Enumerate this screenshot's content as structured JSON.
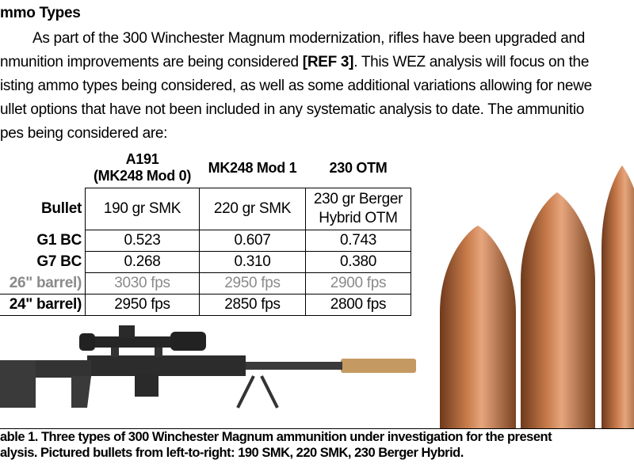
{
  "heading": "mmo Types",
  "paragraph": {
    "lines": [
      "As part of the 300 Winchester Magnum modernization, rifles have been upgraded and",
      "nmunition improvements are being considered ",
      "isting ammo types being considered, as well as some additional variations allowing for newe",
      "ullet options that have not been included in any systematic analysis to date.  The ammunitio",
      "pes being considered are:"
    ],
    "ref": "[REF 3]",
    "line2_tail": ".  This WEZ analysis will focus on the"
  },
  "table": {
    "columns": [
      "A191\n(MK248 Mod 0)",
      "MK248 Mod 1",
      "230 OTM"
    ],
    "col_a_line1": "A191",
    "col_a_line2": "(MK248 Mod 0)",
    "rows": [
      {
        "label": "Bullet",
        "values": [
          "190 gr SMK",
          "220 gr SMK",
          "230 gr Berger Hybrid OTM"
        ]
      },
      {
        "label": "G1 BC",
        "values": [
          "0.523",
          "0.607",
          "0.743"
        ]
      },
      {
        "label": "G7 BC",
        "values": [
          "0.268",
          "0.310",
          "0.380"
        ]
      },
      {
        "label": "26\" barrel)",
        "values": [
          "3030 fps",
          "2950 fps",
          "2900 fps"
        ]
      },
      {
        "label": "24\" barrel)",
        "values": [
          "2950 fps",
          "2850 fps",
          "2800 fps"
        ]
      }
    ],
    "bullet_c_line1": "230 gr Berger",
    "bullet_c_line2": "Hybrid OTM"
  },
  "images": {
    "rifle": "rifle-photo",
    "bullets": "bullets-photo",
    "bullet_color": "#b5683c"
  },
  "caption": {
    "line1": "able 1. Three types of 300 Winchester Magnum ammunition under investigation for the present",
    "line2": "alysis.  Pictured bullets from left-to-right: 190 SMK, 220 SMK, 230 Berger Hybrid."
  }
}
